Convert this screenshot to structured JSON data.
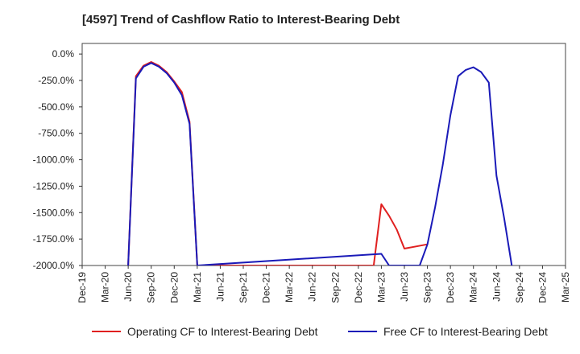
{
  "title": "[4597]  Trend of Cashflow Ratio to Interest-Bearing Debt",
  "chart_data": {
    "type": "line",
    "x_ticks": [
      "Dec-19",
      "Mar-20",
      "Jun-20",
      "Sep-20",
      "Dec-20",
      "Mar-21",
      "Jun-21",
      "Sep-21",
      "Dec-21",
      "Mar-22",
      "Jun-22",
      "Sep-22",
      "Dec-22",
      "Mar-23",
      "Jun-23",
      "Sep-23",
      "Dec-23",
      "Mar-24",
      "Jun-24",
      "Sep-24",
      "Dec-24",
      "Mar-25"
    ],
    "y_ticks": [
      0,
      -250,
      -500,
      -750,
      -1000,
      -1250,
      -1500,
      -1750,
      -2000
    ],
    "y_tick_labels": [
      "0.0%",
      "-250.0%",
      "-500.0%",
      "-750.0%",
      "-1000.0%",
      "-1250.0%",
      "-1500.0%",
      "-1750.0%",
      "-2000.0%"
    ],
    "ylim": [
      -2000,
      100
    ],
    "grid": true,
    "legend_position": "bottom",
    "series": [
      {
        "name": "Operating CF to Interest-Bearing Debt",
        "color": "#e02020",
        "points": [
          {
            "x": "2020-06",
            "y": -2000
          },
          {
            "x": "2020-07",
            "y": -210
          },
          {
            "x": "2020-08",
            "y": -110
          },
          {
            "x": "2020-09",
            "y": -75
          },
          {
            "x": "2020-10",
            "y": -110
          },
          {
            "x": "2020-11",
            "y": -170
          },
          {
            "x": "2020-12",
            "y": -260
          },
          {
            "x": "2021-01",
            "y": -360
          },
          {
            "x": "2021-02",
            "y": -640
          },
          {
            "x": "2021-03",
            "y": -2000
          },
          {
            "x": "2023-02",
            "y": -2000
          },
          {
            "x": "2023-03",
            "y": -1420
          },
          {
            "x": "2023-04",
            "y": -1530
          },
          {
            "x": "2023-05",
            "y": -1660
          },
          {
            "x": "2023-06",
            "y": -1840
          },
          {
            "x": "2023-09",
            "y": -1800
          }
        ]
      },
      {
        "name": "Free CF to Interest-Bearing Debt",
        "color": "#1a1ab8",
        "points": [
          {
            "x": "2020-06",
            "y": -2000
          },
          {
            "x": "2020-07",
            "y": -230
          },
          {
            "x": "2020-08",
            "y": -120
          },
          {
            "x": "2020-09",
            "y": -85
          },
          {
            "x": "2020-10",
            "y": -120
          },
          {
            "x": "2020-11",
            "y": -180
          },
          {
            "x": "2020-12",
            "y": -270
          },
          {
            "x": "2021-01",
            "y": -390
          },
          {
            "x": "2021-02",
            "y": -660
          },
          {
            "x": "2021-03",
            "y": -2000
          },
          {
            "x": "2023-03",
            "y": -1890
          },
          {
            "x": "2023-04",
            "y": -2000
          },
          {
            "x": "2023-08",
            "y": -2000
          },
          {
            "x": "2023-09",
            "y": -1800
          },
          {
            "x": "2023-10",
            "y": -1450
          },
          {
            "x": "2023-11",
            "y": -1050
          },
          {
            "x": "2023-12",
            "y": -580
          },
          {
            "x": "2024-01",
            "y": -210
          },
          {
            "x": "2024-02",
            "y": -150
          },
          {
            "x": "2024-03",
            "y": -125
          },
          {
            "x": "2024-04",
            "y": -170
          },
          {
            "x": "2024-05",
            "y": -270
          },
          {
            "x": "2024-06",
            "y": -1150
          },
          {
            "x": "2024-07",
            "y": -1550
          },
          {
            "x": "2024-08",
            "y": -2000
          }
        ]
      }
    ]
  }
}
